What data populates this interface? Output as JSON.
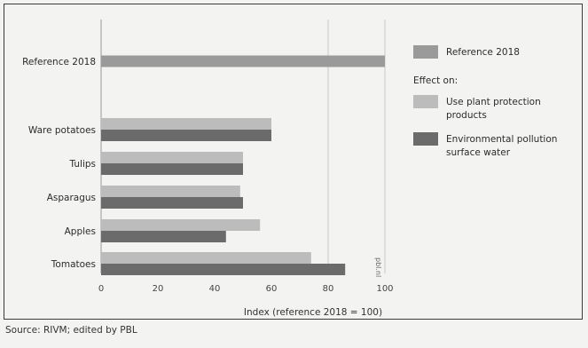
{
  "chart_data": {
    "type": "bar",
    "orientation": "horizontal",
    "reference": {
      "name": "Reference 2018",
      "category": "Reference 2018",
      "value": 100
    },
    "categories": [
      "Ware potatoes",
      "Tulips",
      "Asparagus",
      "Apples",
      "Tomatoes"
    ],
    "series": [
      {
        "name": "Use plant protection products",
        "values": [
          60,
          50,
          49,
          56,
          74
        ]
      },
      {
        "name": "Environmental pollution surface water",
        "values": [
          60,
          50,
          50,
          44,
          86
        ]
      }
    ],
    "xlabel": "Index (reference 2018 = 100)",
    "xlim": [
      0,
      100
    ],
    "xticks": [
      "0",
      "20",
      "40",
      "60",
      "80",
      "100"
    ],
    "grid": "vertical",
    "legend_position": "right",
    "legend_heading": "Effect on:",
    "colors": {
      "reference": "#9a9a9a",
      "use": "#bcbcbc",
      "pollution": "#6b6b6b",
      "background": "#f3f3f1"
    },
    "credit": "pbl.nl"
  },
  "source": "Source: RIVM; edited by PBL"
}
